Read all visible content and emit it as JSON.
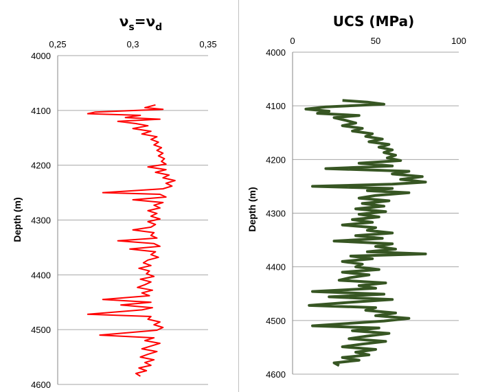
{
  "chart_data": [
    {
      "type": "line",
      "title_main": "ν",
      "title_sub1": "s",
      "title_eq": "=ν",
      "title_sub2": "d",
      "ylabel": "Depth (m)",
      "xlim": [
        0.25,
        0.35
      ],
      "ylim": [
        4000,
        4600
      ],
      "y_inverted": true,
      "x_axis_position": "top",
      "x_ticks": [
        "0,25",
        "0,3",
        "0,35"
      ],
      "y_ticks": [
        "4000",
        "4100",
        "4200",
        "4300",
        "4400",
        "4500",
        "4600"
      ],
      "series": [
        {
          "color": "#ff0000",
          "points": [
            [
              0.315,
              4090
            ],
            [
              0.308,
              4095
            ],
            [
              0.32,
              4098
            ],
            [
              0.275,
              4103
            ],
            [
              0.27,
              4106
            ],
            [
              0.305,
              4109
            ],
            [
              0.295,
              4113
            ],
            [
              0.318,
              4116
            ],
            [
              0.29,
              4120
            ],
            [
              0.302,
              4124
            ],
            [
              0.31,
              4128
            ],
            [
              0.3,
              4133
            ],
            [
              0.312,
              4138
            ],
            [
              0.306,
              4143
            ],
            [
              0.316,
              4148
            ],
            [
              0.312,
              4153
            ],
            [
              0.317,
              4158
            ],
            [
              0.314,
              4163
            ],
            [
              0.319,
              4168
            ],
            [
              0.316,
              4173
            ],
            [
              0.32,
              4178
            ],
            [
              0.317,
              4183
            ],
            [
              0.321,
              4188
            ],
            [
              0.319,
              4193
            ],
            [
              0.322,
              4198
            ],
            [
              0.31,
              4203
            ],
            [
              0.322,
              4208
            ],
            [
              0.315,
              4213
            ],
            [
              0.324,
              4218
            ],
            [
              0.32,
              4223
            ],
            [
              0.328,
              4228
            ],
            [
              0.322,
              4233
            ],
            [
              0.326,
              4238
            ],
            [
              0.32,
              4243
            ],
            [
              0.28,
              4250
            ],
            [
              0.318,
              4253
            ],
            [
              0.322,
              4258
            ],
            [
              0.3,
              4263
            ],
            [
              0.32,
              4268
            ],
            [
              0.314,
              4273
            ],
            [
              0.318,
              4278
            ],
            [
              0.31,
              4283
            ],
            [
              0.316,
              4288
            ],
            [
              0.312,
              4293
            ],
            [
              0.318,
              4298
            ],
            [
              0.31,
              4303
            ],
            [
              0.315,
              4308
            ],
            [
              0.312,
              4313
            ],
            [
              0.3,
              4318
            ],
            [
              0.314,
              4323
            ],
            [
              0.312,
              4328
            ],
            [
              0.316,
              4333
            ],
            [
              0.29,
              4338
            ],
            [
              0.314,
              4343
            ],
            [
              0.318,
              4348
            ],
            [
              0.298,
              4353
            ],
            [
              0.315,
              4358
            ],
            [
              0.312,
              4363
            ],
            [
              0.317,
              4368
            ],
            [
              0.31,
              4373
            ],
            [
              0.307,
              4378
            ],
            [
              0.312,
              4383
            ],
            [
              0.304,
              4388
            ],
            [
              0.311,
              4393
            ],
            [
              0.309,
              4398
            ],
            [
              0.314,
              4403
            ],
            [
              0.305,
              4408
            ],
            [
              0.312,
              4413
            ],
            [
              0.308,
              4418
            ],
            [
              0.303,
              4423
            ],
            [
              0.313,
              4428
            ],
            [
              0.306,
              4433
            ],
            [
              0.311,
              4438
            ],
            [
              0.28,
              4445
            ],
            [
              0.312,
              4450
            ],
            [
              0.292,
              4455
            ],
            [
              0.313,
              4460
            ],
            [
              0.306,
              4464
            ],
            [
              0.27,
              4472
            ],
            [
              0.312,
              4476
            ],
            [
              0.31,
              4481
            ],
            [
              0.318,
              4486
            ],
            [
              0.314,
              4491
            ],
            [
              0.32,
              4496
            ],
            [
              0.316,
              4501
            ],
            [
              0.278,
              4510
            ],
            [
              0.314,
              4515
            ],
            [
              0.308,
              4520
            ],
            [
              0.318,
              4525
            ],
            [
              0.312,
              4530
            ],
            [
              0.306,
              4535
            ],
            [
              0.316,
              4540
            ],
            [
              0.31,
              4545
            ],
            [
              0.305,
              4550
            ],
            [
              0.314,
              4555
            ],
            [
              0.308,
              4560
            ],
            [
              0.312,
              4565
            ],
            [
              0.304,
              4570
            ],
            [
              0.309,
              4575
            ],
            [
              0.302,
              4580
            ],
            [
              0.305,
              4585
            ]
          ]
        }
      ]
    },
    {
      "type": "line",
      "title": "UCS (MPa)",
      "ylabel": "Depth (m)",
      "xlim": [
        0,
        100
      ],
      "ylim": [
        4000,
        4600
      ],
      "y_inverted": true,
      "x_axis_position": "top",
      "x_ticks": [
        "0",
        "50",
        "100"
      ],
      "y_ticks": [
        "4000",
        "4100",
        "4200",
        "4300",
        "4400",
        "4500",
        "4600"
      ],
      "series": [
        {
          "color": "#375623",
          "points": [
            [
              30,
              4090
            ],
            [
              45,
              4093
            ],
            [
              55,
              4097
            ],
            [
              20,
              4102
            ],
            [
              8,
              4106
            ],
            [
              22,
              4110
            ],
            [
              15,
              4114
            ],
            [
              40,
              4118
            ],
            [
              25,
              4122
            ],
            [
              32,
              4127
            ],
            [
              38,
              4132
            ],
            [
              30,
              4137
            ],
            [
              42,
              4142
            ],
            [
              36,
              4147
            ],
            [
              48,
              4152
            ],
            [
              44,
              4157
            ],
            [
              54,
              4162
            ],
            [
              46,
              4167
            ],
            [
              58,
              4172
            ],
            [
              52,
              4177
            ],
            [
              60,
              4182
            ],
            [
              55,
              4187
            ],
            [
              62,
              4192
            ],
            [
              57,
              4197
            ],
            [
              65,
              4202
            ],
            [
              40,
              4207
            ],
            [
              60,
              4212
            ],
            [
              20,
              4217
            ],
            [
              70,
              4222
            ],
            [
              60,
              4227
            ],
            [
              78,
              4232
            ],
            [
              65,
              4237
            ],
            [
              80,
              4242
            ],
            [
              60,
              4246
            ],
            [
              12,
              4250
            ],
            [
              60,
              4254
            ],
            [
              45,
              4258
            ],
            [
              70,
              4262
            ],
            [
              50,
              4267
            ],
            [
              40,
              4272
            ],
            [
              58,
              4277
            ],
            [
              42,
              4282
            ],
            [
              55,
              4287
            ],
            [
              38,
              4292
            ],
            [
              56,
              4297
            ],
            [
              40,
              4302
            ],
            [
              52,
              4307
            ],
            [
              36,
              4312
            ],
            [
              48,
              4317
            ],
            [
              30,
              4322
            ],
            [
              50,
              4327
            ],
            [
              45,
              4332
            ],
            [
              60,
              4337
            ],
            [
              38,
              4342
            ],
            [
              54,
              4347
            ],
            [
              25,
              4352
            ],
            [
              60,
              4357
            ],
            [
              50,
              4362
            ],
            [
              62,
              4367
            ],
            [
              45,
              4372
            ],
            [
              80,
              4376
            ],
            [
              35,
              4380
            ],
            [
              48,
              4385
            ],
            [
              30,
              4390
            ],
            [
              42,
              4395
            ],
            [
              38,
              4400
            ],
            [
              52,
              4405
            ],
            [
              30,
              4410
            ],
            [
              46,
              4415
            ],
            [
              35,
              4420
            ],
            [
              28,
              4425
            ],
            [
              56,
              4430
            ],
            [
              40,
              4435
            ],
            [
              50,
              4440
            ],
            [
              12,
              4446
            ],
            [
              55,
              4451
            ],
            [
              22,
              4456
            ],
            [
              60,
              4461
            ],
            [
              35,
              4466
            ],
            [
              10,
              4472
            ],
            [
              50,
              4476
            ],
            [
              44,
              4481
            ],
            [
              62,
              4486
            ],
            [
              50,
              4491
            ],
            [
              70,
              4496
            ],
            [
              55,
              4501
            ],
            [
              12,
              4510
            ],
            [
              52,
              4514
            ],
            [
              36,
              4519
            ],
            [
              58,
              4524
            ],
            [
              45,
              4529
            ],
            [
              34,
              4534
            ],
            [
              56,
              4539
            ],
            [
              42,
              4544
            ],
            [
              30,
              4549
            ],
            [
              50,
              4554
            ],
            [
              38,
              4559
            ],
            [
              46,
              4564
            ],
            [
              30,
              4569
            ],
            [
              40,
              4574
            ],
            [
              25,
              4579
            ],
            [
              28,
              4584
            ]
          ]
        }
      ]
    }
  ]
}
